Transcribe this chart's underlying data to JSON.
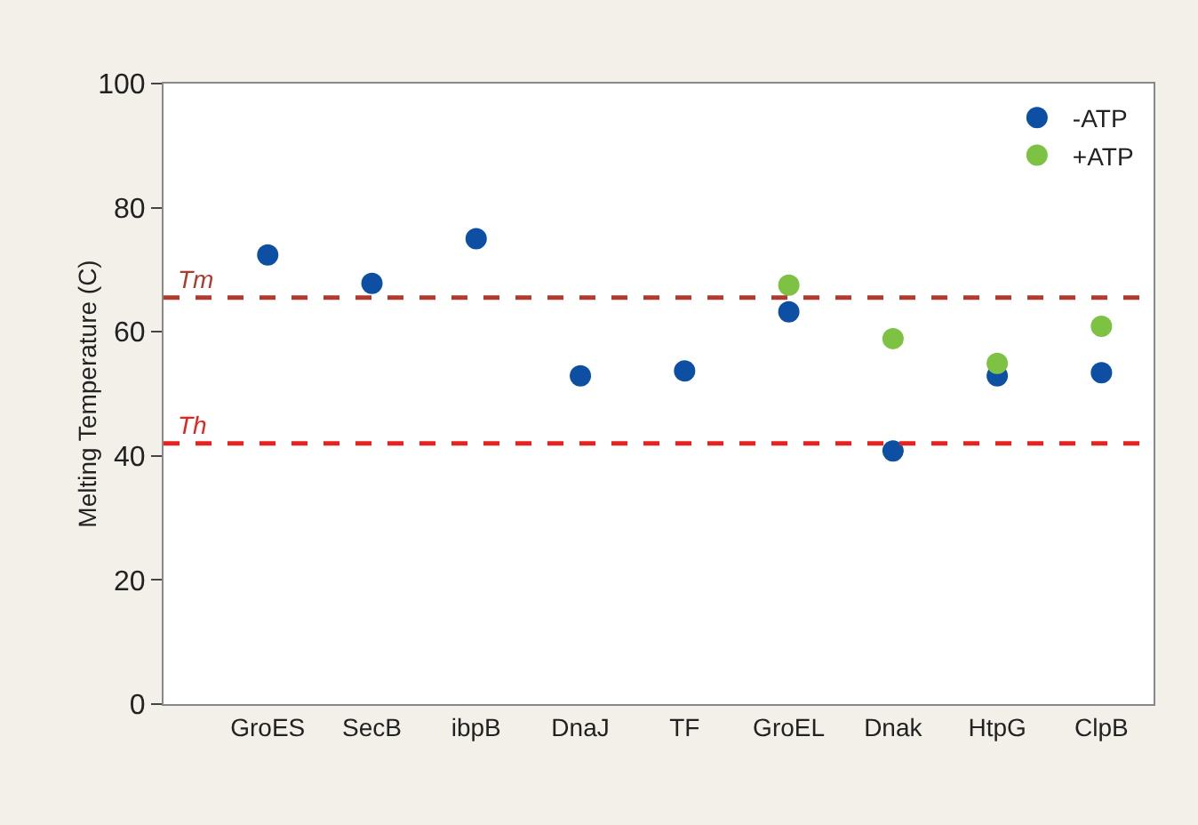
{
  "chart_data": {
    "type": "scatter",
    "ylabel": "Melting Temperature (C)",
    "categories": [
      "GroES",
      "SecB",
      "ibpB",
      "DnaJ",
      "TF",
      "GroEL",
      "Dnak",
      "HtpG",
      "ClpB"
    ],
    "series": [
      {
        "name": "-ATP",
        "color": "#0d4fa3",
        "values": [
          72.4,
          67.8,
          75,
          52.9,
          53.7,
          63.2,
          40.8,
          52.9,
          53.4
        ]
      },
      {
        "name": "+ATP",
        "color": "#7dc242",
        "values": [
          null,
          null,
          null,
          null,
          null,
          67.5,
          58.9,
          54.9,
          60.9
        ]
      }
    ],
    "ylim": [
      0,
      100
    ],
    "yticks": [
      0,
      20,
      40,
      60,
      80,
      100
    ],
    "ref_lines": [
      {
        "axis": "y",
        "value": 65.5,
        "label": "Tm",
        "color": "#b03a2e",
        "line_style": "dashed"
      },
      {
        "axis": "y",
        "value": 42,
        "label": "Th",
        "color": "#e8231f",
        "line_style": "dashed"
      }
    ],
    "marker": "circle",
    "legend": "top right",
    "grid": false
  }
}
